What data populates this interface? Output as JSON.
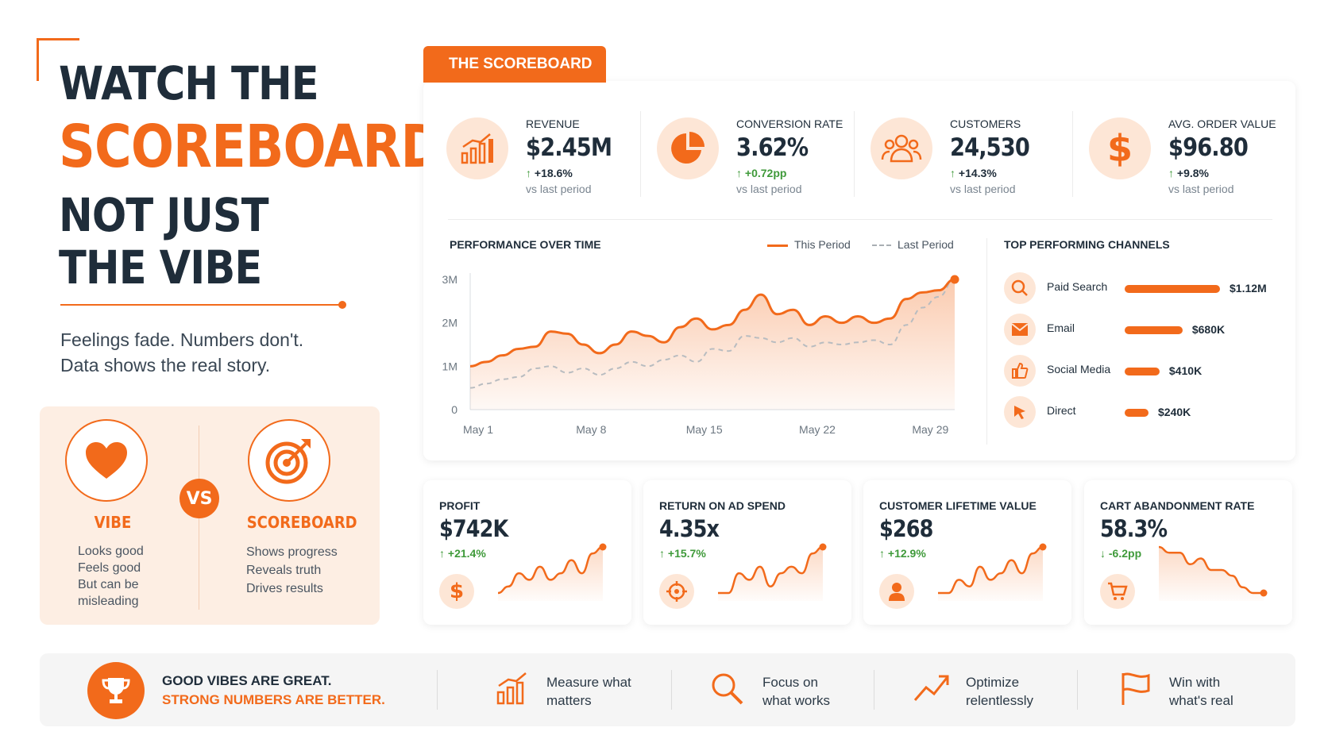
{
  "headline": {
    "line1": "WATCH THE",
    "line2": "SCOREBOARD",
    "line3": "NOT JUST",
    "line4": "THE VIBE"
  },
  "subtitle": {
    "line1": "Feelings fade. Numbers don't.",
    "line2": "Data shows the real story."
  },
  "comparison": {
    "badge": "VS",
    "vibe": {
      "title": "VIBE",
      "lines": [
        "Looks good",
        "Feels good",
        "But can be",
        "misleading"
      ],
      "icon": "heart-icon"
    },
    "scoreboard": {
      "title": "SCOREBOARD",
      "lines": [
        "Shows progress",
        "Reveals truth",
        "Drives results"
      ],
      "icon": "target-icon"
    }
  },
  "scoreboard": {
    "tab_label": "THE SCOREBOARD",
    "kpis": [
      {
        "label": "REVENUE",
        "value": "$2.45M",
        "change": "+18.6%",
        "sub": "vs last period",
        "icon": "bar-chart-icon"
      },
      {
        "label": "CONVERSION RATE",
        "value": "3.62%",
        "change": "+0.72pp",
        "sub": "vs last period",
        "icon": "pie-chart-icon"
      },
      {
        "label": "CUSTOMERS",
        "value": "24,530",
        "change": "+14.3%",
        "sub": "vs last period",
        "icon": "users-icon"
      },
      {
        "label": "AVG. ORDER VALUE",
        "value": "$96.80",
        "change": "+9.8%",
        "sub": "vs last period",
        "icon": "dollar-icon"
      }
    ],
    "performance": {
      "title": "PERFORMANCE OVER TIME",
      "legend_this": "This Period",
      "legend_last": "Last Period"
    },
    "channels": {
      "title": "TOP PERFORMING CHANNELS",
      "items": [
        {
          "name": "Paid Search",
          "value": "$1.12M",
          "amount": 1.12,
          "icon": "search-icon"
        },
        {
          "name": "Email",
          "value": "$680K",
          "amount": 0.68,
          "icon": "mail-icon"
        },
        {
          "name": "Social Media",
          "value": "$410K",
          "amount": 0.41,
          "icon": "thumbs-up-icon"
        },
        {
          "name": "Direct",
          "value": "$240K",
          "amount": 0.24,
          "icon": "cursor-icon"
        }
      ]
    }
  },
  "chart_data": {
    "type": "line",
    "title": "PERFORMANCE OVER TIME",
    "xlabel": "",
    "ylabel": "",
    "x_ticks": [
      "May 1",
      "May 8",
      "May 15",
      "May 22",
      "May 29"
    ],
    "y_ticks": [
      "0",
      "1M",
      "2M",
      "3M"
    ],
    "ylim": [
      0,
      3000000
    ],
    "x": [
      1,
      2,
      3,
      4,
      5,
      6,
      7,
      8,
      9,
      10,
      11,
      12,
      13,
      14,
      15,
      16,
      17,
      18,
      19,
      20,
      21,
      22,
      23,
      24,
      25,
      26,
      27,
      28,
      29,
      30,
      31
    ],
    "series": [
      {
        "name": "This Period",
        "color": "#f26a1b",
        "style": "solid",
        "values": [
          1000000,
          1100000,
          1250000,
          1400000,
          1450000,
          1800000,
          1750000,
          1500000,
          1300000,
          1500000,
          1800000,
          1700000,
          1550000,
          1900000,
          2100000,
          1850000,
          1950000,
          2300000,
          2650000,
          2200000,
          2300000,
          1950000,
          2150000,
          2000000,
          2150000,
          2000000,
          2100000,
          2550000,
          2700000,
          2750000,
          3000000
        ]
      },
      {
        "name": "Last Period",
        "color": "#b8bcc0",
        "style": "dashed",
        "values": [
          500000,
          600000,
          700000,
          750000,
          950000,
          1000000,
          850000,
          950000,
          800000,
          950000,
          1100000,
          1000000,
          1150000,
          1250000,
          1100000,
          1400000,
          1350000,
          1700000,
          1650000,
          1550000,
          1650000,
          1450000,
          1550000,
          1500000,
          1550000,
          1600000,
          1500000,
          1950000,
          2350000,
          2600000,
          3000000
        ]
      }
    ],
    "grid": false,
    "legend": "top-right"
  },
  "metrics": [
    {
      "label": "PROFIT",
      "value": "$742K",
      "change": "+21.4%",
      "direction": "up",
      "icon": "dollar-icon",
      "trend": [
        2,
        3,
        5,
        4,
        6,
        4,
        5,
        7,
        5,
        8,
        9
      ]
    },
    {
      "label": "RETURN ON AD SPEND",
      "value": "4.35x",
      "change": "+15.7%",
      "direction": "up",
      "icon": "target-icon",
      "trend": [
        2,
        2,
        5,
        4,
        6,
        3,
        5,
        6,
        5,
        8,
        9
      ]
    },
    {
      "label": "CUSTOMER LIFETIME VALUE",
      "value": "$268",
      "change": "+12.9%",
      "direction": "up",
      "icon": "user-icon",
      "trend": [
        2,
        2,
        4,
        3,
        6,
        4,
        5,
        7,
        5,
        8,
        9
      ]
    },
    {
      "label": "CART ABANDONMENT RATE",
      "value": "58.3%",
      "change": "-6.2pp",
      "direction": "down",
      "icon": "cart-icon",
      "trend": [
        9,
        8,
        8,
        6,
        7,
        5,
        5,
        4,
        2,
        1,
        1
      ]
    }
  ],
  "footer": {
    "line1": "GOOD VIBES ARE GREAT.",
    "line2": "STRONG NUMBERS ARE BETTER.",
    "items": [
      {
        "line1": "Measure what",
        "line2": "matters",
        "icon": "bar-chart-icon"
      },
      {
        "line1": "Focus on",
        "line2": "what works",
        "icon": "magnifier-icon"
      },
      {
        "line1": "Optimize",
        "line2": "relentlessly",
        "icon": "trend-up-icon"
      },
      {
        "line1": "Win with",
        "line2": "what's real",
        "icon": "flag-icon"
      }
    ]
  },
  "colors": {
    "accent": "#f26a1b",
    "positive": "#3f9a3a",
    "negative": "#3f9a3a",
    "text": "#1f2d3a",
    "light_accent": "#fde6d6"
  }
}
